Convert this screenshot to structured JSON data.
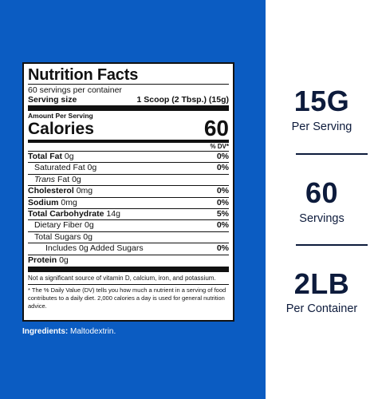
{
  "label": {
    "title": "Nutrition Facts",
    "servings_per_container": "60 servings per container",
    "serving_size_label": "Serving size",
    "serving_size_value": "1 Scoop (2 Tbsp.) (15g)",
    "amount_per_serving": "Amount Per Serving",
    "calories_label": "Calories",
    "calories_value": "60",
    "dv_header": "% DV*",
    "nutrients": [
      {
        "name": "Total Fat",
        "amount": "0g",
        "dv": "0%"
      },
      {
        "name": "Saturated Fat",
        "amount": "0g",
        "dv": "0%"
      },
      {
        "name_italic": "Trans",
        "name_rest": "Fat",
        "amount": "0g",
        "dv": ""
      },
      {
        "name": "Cholesterol",
        "amount": "0mg",
        "dv": "0%"
      },
      {
        "name": "Sodium",
        "amount": "0mg",
        "dv": "0%"
      },
      {
        "name": "Total Carbohydrate",
        "amount": "14g",
        "dv": "5%"
      },
      {
        "name": "Dietary Fiber",
        "amount": "0g",
        "dv": "0%"
      },
      {
        "name": "Total Sugars",
        "amount": "0g",
        "dv": ""
      },
      {
        "name": "Includes 0g Added Sugars",
        "amount": "",
        "dv": "0%"
      },
      {
        "name": "Protein",
        "amount": "0g",
        "dv": ""
      }
    ],
    "vitamin_note": "Not a significant source of vitamin D, calcium, iron, and potassium.",
    "footnote": "* The % Daily Value (DV) tells you how much a nutrient in a serving of food contributes to a daily diet. 2,000 calories a day is used for general nutrition advice."
  },
  "ingredients": {
    "label": "Ingredients:",
    "value": "Maltodextrin."
  },
  "stats": [
    {
      "big": "15G",
      "sub": "Per Serving"
    },
    {
      "big": "60",
      "sub": "Servings"
    },
    {
      "big": "2LB",
      "sub": "Per Container"
    }
  ],
  "colors": {
    "panel_blue": "#0b5cc2",
    "stat_text": "#0d1b3c"
  }
}
